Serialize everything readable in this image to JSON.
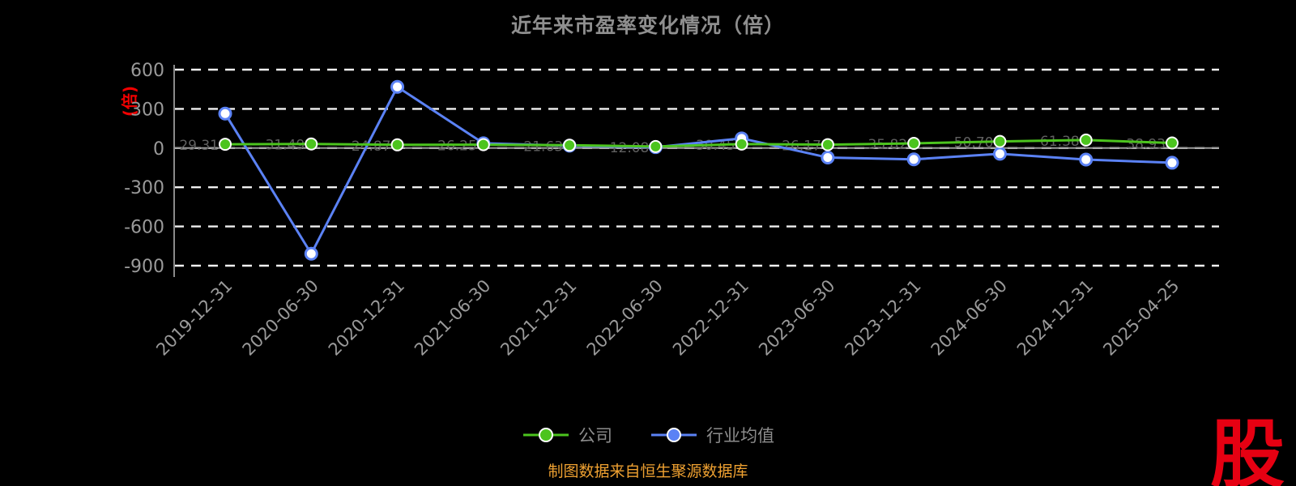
{
  "title": "近年来市盈率变化情况（倍）",
  "y_axis_unit_label": "(倍)",
  "footer": {
    "source_note": "制图数据来自恒生聚源数据库"
  },
  "logo_text": "股",
  "colors": {
    "background": "#000000",
    "title": "#8f8f8f",
    "axis_text": "#9a9a9a",
    "grid": "#f0f0f0",
    "unit_label": "#f00000",
    "footer": "#efa131",
    "logo": "#e60012",
    "company": "#4cc41e",
    "industry": "#5b82f5"
  },
  "legend": [
    {
      "name": "公司"
    },
    {
      "name": "行业均值"
    }
  ],
  "chart_data": {
    "type": "line",
    "title": "近年来市盈率变化情况（倍）",
    "ylabel": "(倍)",
    "xlabel": "",
    "ylim": [
      -900,
      600
    ],
    "yticks": [
      600,
      300,
      0,
      -300,
      -600,
      -900
    ],
    "grid": true,
    "legend_position": "bottom",
    "categories": [
      "2019-12-31",
      "2020-06-30",
      "2020-12-31",
      "2021-06-30",
      "2021-12-31",
      "2022-06-30",
      "2022-12-31",
      "2023-06-30",
      "2023-12-31",
      "2024-06-30",
      "2024-12-31",
      "2025-04-25"
    ],
    "series": [
      {
        "name": "公司",
        "color": "#4cc41e",
        "values": [
          29.31,
          31.49,
          24.87,
          26.25,
          21.63,
          12.08,
          30.45,
          26.17,
          35.82,
          50.7,
          61.38,
          38.93
        ]
      },
      {
        "name": "行业均值",
        "color": "#5b82f5",
        "values": [
          263.54,
          -808.7,
          468.12,
          36.47,
          17.85,
          6.92,
          74.26,
          -72.31,
          -86.54,
          -43.89,
          -88.12,
          -112.36
        ]
      }
    ]
  }
}
